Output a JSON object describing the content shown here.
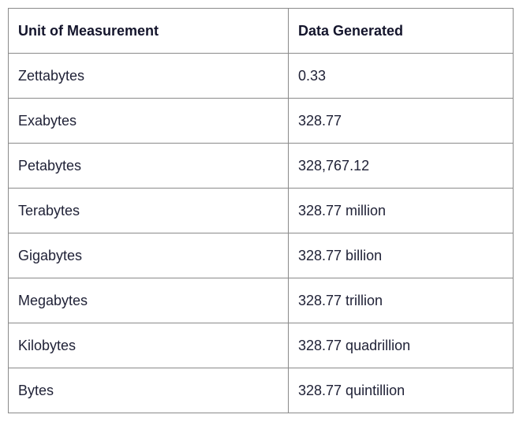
{
  "table": {
    "headers": [
      "Unit of Measurement",
      "Data Generated"
    ],
    "rows": [
      [
        "Zettabytes",
        "0.33"
      ],
      [
        "Exabytes",
        "328.77"
      ],
      [
        "Petabytes",
        "328,767.12"
      ],
      [
        "Terabytes",
        "328.77 million"
      ],
      [
        "Gigabytes",
        "328.77 billion"
      ],
      [
        "Megabytes",
        "328.77 trillion"
      ],
      [
        "Kilobytes",
        "328.77 quadrillion"
      ],
      [
        "Bytes",
        "328.77 quintillion"
      ]
    ]
  }
}
